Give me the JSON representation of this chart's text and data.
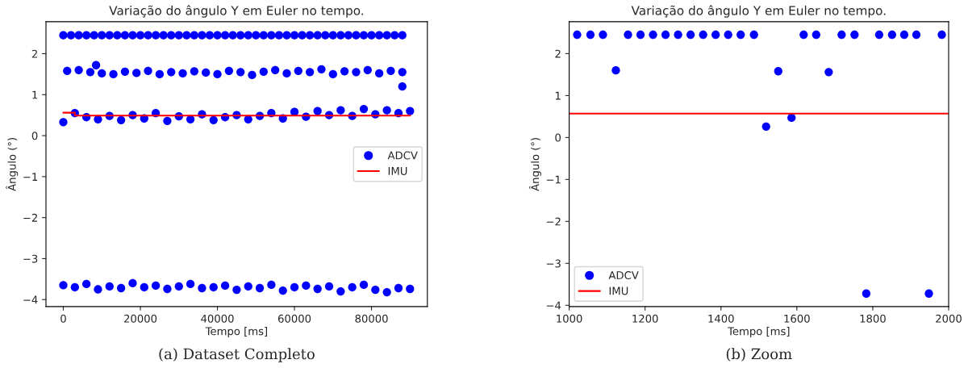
{
  "chart_data": [
    {
      "type": "scatter",
      "title": "Variação do ângulo Y em Euler no tempo.",
      "xlabel": "Tempo [ms]",
      "ylabel": "Ângulo (°)",
      "xlim": [
        -4500,
        94500
      ],
      "ylim": [
        -4.17,
        2.78
      ],
      "xticks": [
        0,
        20000,
        40000,
        60000,
        80000
      ],
      "yticks": [
        {
          "value": -4,
          "label": "−4"
        },
        {
          "value": -3,
          "label": "−3"
        },
        {
          "value": -2,
          "label": "−2"
        },
        {
          "value": -1,
          "label": "−1"
        },
        0,
        1,
        2
      ],
      "grid": false,
      "legend": "right",
      "annotations": [
        "(a) Dataset Completo"
      ],
      "series": [
        {
          "name": "ADCV",
          "marker": "circle",
          "color": "#0000ff",
          "x": [
            0,
            2000,
            4000,
            6000,
            8000,
            10000,
            12000,
            14000,
            16000,
            18000,
            20000,
            22000,
            24000,
            26000,
            28000,
            30000,
            32000,
            34000,
            36000,
            38000,
            40000,
            42000,
            44000,
            46000,
            48000,
            50000,
            52000,
            54000,
            56000,
            58000,
            60000,
            62000,
            64000,
            66000,
            68000,
            70000,
            72000,
            74000,
            76000,
            78000,
            80000,
            82000,
            84000,
            86000,
            88000,
            1000,
            4000,
            7000,
            10000,
            13000,
            16000,
            19000,
            22000,
            25000,
            28000,
            31000,
            34000,
            37000,
            40000,
            43000,
            46000,
            49000,
            52000,
            55000,
            58000,
            61000,
            64000,
            67000,
            70000,
            73000,
            76000,
            79000,
            82000,
            85000,
            88000,
            8500,
            88000,
            0,
            3000,
            6000,
            9000,
            12000,
            15000,
            18000,
            21000,
            24000,
            27000,
            30000,
            33000,
            36000,
            39000,
            42000,
            45000,
            48000,
            51000,
            54000,
            57000,
            60000,
            63000,
            66000,
            69000,
            72000,
            75000,
            78000,
            81000,
            84000,
            87000,
            90000,
            0,
            3000,
            6000,
            9000,
            12000,
            15000,
            18000,
            21000,
            24000,
            27000,
            30000,
            33000,
            36000,
            39000,
            42000,
            45000,
            48000,
            51000,
            54000,
            57000,
            60000,
            63000,
            66000,
            69000,
            72000,
            75000,
            78000,
            81000,
            84000,
            87000,
            90000
          ],
          "values": [
            2.45,
            2.45,
            2.45,
            2.45,
            2.45,
            2.45,
            2.45,
            2.45,
            2.45,
            2.45,
            2.45,
            2.45,
            2.45,
            2.45,
            2.45,
            2.45,
            2.45,
            2.45,
            2.45,
            2.45,
            2.45,
            2.45,
            2.45,
            2.45,
            2.45,
            2.45,
            2.45,
            2.45,
            2.45,
            2.45,
            2.45,
            2.45,
            2.45,
            2.45,
            2.45,
            2.45,
            2.45,
            2.45,
            2.45,
            2.45,
            2.45,
            2.45,
            2.45,
            2.45,
            2.45,
            1.58,
            1.6,
            1.55,
            1.52,
            1.5,
            1.56,
            1.53,
            1.58,
            1.5,
            1.55,
            1.52,
            1.57,
            1.54,
            1.5,
            1.58,
            1.55,
            1.48,
            1.56,
            1.6,
            1.52,
            1.58,
            1.55,
            1.62,
            1.5,
            1.57,
            1.55,
            1.6,
            1.52,
            1.58,
            1.55,
            1.72,
            1.2,
            0.33,
            0.55,
            0.45,
            0.4,
            0.48,
            0.38,
            0.5,
            0.42,
            0.55,
            0.36,
            0.47,
            0.4,
            0.52,
            0.38,
            0.45,
            0.5,
            0.4,
            0.48,
            0.55,
            0.42,
            0.58,
            0.46,
            0.6,
            0.5,
            0.62,
            0.48,
            0.65,
            0.52,
            0.62,
            0.55,
            0.6,
            -3.65,
            -3.7,
            -3.62,
            -3.75,
            -3.68,
            -3.72,
            -3.6,
            -3.7,
            -3.66,
            -3.74,
            -3.68,
            -3.62,
            -3.72,
            -3.7,
            -3.66,
            -3.76,
            -3.68,
            -3.72,
            -3.64,
            -3.78,
            -3.7,
            -3.66,
            -3.74,
            -3.68,
            -3.8,
            -3.7,
            -3.64,
            -3.76,
            -3.82,
            -3.72,
            -3.74
          ]
        },
        {
          "name": "IMU",
          "type": "line",
          "marker": "none",
          "color": "#ff0000",
          "x": [
            0,
            3000,
            3000,
            90000
          ],
          "values": [
            0.56,
            0.56,
            0.49,
            0.49
          ]
        }
      ]
    },
    {
      "type": "scatter",
      "title": "Variação do ângulo Y em Euler no tempo.",
      "xlabel": "Tempo [ms]",
      "ylabel": "Ângulo (°)",
      "xlim": [
        1000,
        2000
      ],
      "ylim": [
        -4.03,
        2.76
      ],
      "xticks": [
        1000,
        1200,
        1400,
        1600,
        1800,
        2000
      ],
      "yticks": [
        {
          "value": -4,
          "label": "−4"
        },
        {
          "value": -3,
          "label": "−3"
        },
        {
          "value": -2,
          "label": "−2"
        },
        {
          "value": -1,
          "label": "−1"
        },
        0,
        1,
        2
      ],
      "grid": false,
      "legend": "bottom left",
      "annotations": [
        "(b) Zoom"
      ],
      "series": [
        {
          "name": "ADCV",
          "marker": "circle",
          "color": "#0000ff",
          "x": [
            1021,
            1056,
            1089,
            1155,
            1188,
            1221,
            1254,
            1287,
            1320,
            1353,
            1386,
            1419,
            1452,
            1487,
            1618,
            1651,
            1718,
            1752,
            1817,
            1851,
            1883,
            1915,
            1982,
            1123,
            1551,
            1684,
            1519,
            1586,
            1783,
            1948
          ],
          "values": [
            2.45,
            2.45,
            2.45,
            2.45,
            2.45,
            2.45,
            2.45,
            2.45,
            2.45,
            2.45,
            2.45,
            2.45,
            2.45,
            2.45,
            2.45,
            2.45,
            2.45,
            2.45,
            2.45,
            2.45,
            2.45,
            2.45,
            2.45,
            1.6,
            1.58,
            1.56,
            0.26,
            0.47,
            -3.72,
            -3.72
          ]
        },
        {
          "name": "IMU",
          "type": "line",
          "marker": "none",
          "color": "#ff0000",
          "x": [
            1000,
            2000
          ],
          "values": [
            0.57,
            0.57
          ]
        }
      ]
    }
  ]
}
